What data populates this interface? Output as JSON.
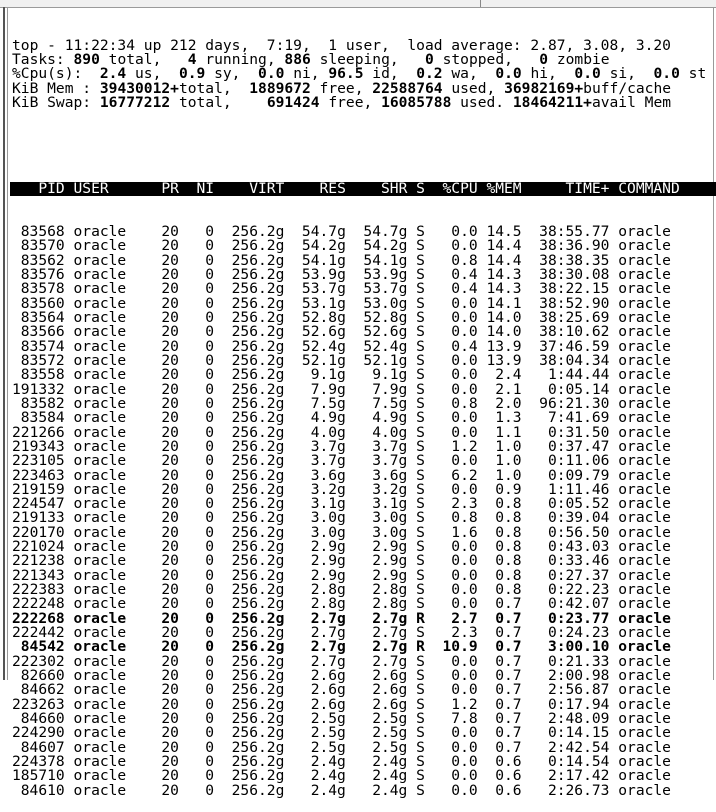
{
  "summary": [
    [
      {
        "t": "top - 11:22:34 up 212 days,  7:19,  1 user,  load average: 2.87, 3.08, 3.20",
        "b": false
      }
    ],
    [
      {
        "t": "Tasks: ",
        "b": false
      },
      {
        "t": "890",
        "b": true
      },
      {
        "t": " total,   ",
        "b": false
      },
      {
        "t": "4",
        "b": true
      },
      {
        "t": " running, ",
        "b": false
      },
      {
        "t": "886",
        "b": true
      },
      {
        "t": " sleeping,   ",
        "b": false
      },
      {
        "t": "0",
        "b": true
      },
      {
        "t": " stopped,   ",
        "b": false
      },
      {
        "t": "0",
        "b": true
      },
      {
        "t": " zombie",
        "b": false
      }
    ],
    [
      {
        "t": "%Cpu(s): ",
        "b": false
      },
      {
        "t": " 2.4",
        "b": true
      },
      {
        "t": " us, ",
        "b": false
      },
      {
        "t": " 0.9",
        "b": true
      },
      {
        "t": " sy, ",
        "b": false
      },
      {
        "t": " 0.0",
        "b": true
      },
      {
        "t": " ni, ",
        "b": false
      },
      {
        "t": "96.5",
        "b": true
      },
      {
        "t": " id, ",
        "b": false
      },
      {
        "t": " 0.2",
        "b": true
      },
      {
        "t": " wa, ",
        "b": false
      },
      {
        "t": " 0.0",
        "b": true
      },
      {
        "t": " hi, ",
        "b": false
      },
      {
        "t": " 0.0",
        "b": true
      },
      {
        "t": " si, ",
        "b": false
      },
      {
        "t": " 0.0",
        "b": true
      },
      {
        "t": " st",
        "b": false
      }
    ],
    [
      {
        "t": "KiB Mem : ",
        "b": false
      },
      {
        "t": "39430012+",
        "b": true
      },
      {
        "t": "total, ",
        "b": false
      },
      {
        "t": " 1889672",
        "b": true
      },
      {
        "t": " free, ",
        "b": false
      },
      {
        "t": "22588764",
        "b": true
      },
      {
        "t": " used, ",
        "b": false
      },
      {
        "t": "36982169+",
        "b": true
      },
      {
        "t": "buff/cache",
        "b": false
      }
    ],
    [
      {
        "t": "KiB Swap: ",
        "b": false
      },
      {
        "t": "16777212",
        "b": true
      },
      {
        "t": " total,  ",
        "b": false
      },
      {
        "t": "  691424",
        "b": true
      },
      {
        "t": " free, ",
        "b": false
      },
      {
        "t": "16085788",
        "b": true
      },
      {
        "t": " used. ",
        "b": false
      },
      {
        "t": "18464211+",
        "b": true
      },
      {
        "t": "avail Mem",
        "b": false
      }
    ]
  ],
  "columns": [
    "PID",
    "USER",
    "PR",
    "NI",
    "VIRT",
    "RES",
    "SHR",
    "S",
    "%CPU",
    "%MEM",
    "TIME+",
    "COMMAND"
  ],
  "processes": [
    [
      "83568",
      "oracle",
      "20",
      "0",
      "256.2g",
      "54.7g",
      "54.7g",
      "S",
      "0.0",
      "14.5",
      "38:55.77",
      "oracle"
    ],
    [
      "83570",
      "oracle",
      "20",
      "0",
      "256.2g",
      "54.2g",
      "54.2g",
      "S",
      "0.0",
      "14.4",
      "38:36.90",
      "oracle"
    ],
    [
      "83562",
      "oracle",
      "20",
      "0",
      "256.2g",
      "54.1g",
      "54.1g",
      "S",
      "0.8",
      "14.4",
      "38:38.35",
      "oracle"
    ],
    [
      "83576",
      "oracle",
      "20",
      "0",
      "256.2g",
      "53.9g",
      "53.9g",
      "S",
      "0.4",
      "14.3",
      "38:30.08",
      "oracle"
    ],
    [
      "83578",
      "oracle",
      "20",
      "0",
      "256.2g",
      "53.7g",
      "53.7g",
      "S",
      "0.4",
      "14.3",
      "38:22.15",
      "oracle"
    ],
    [
      "83560",
      "oracle",
      "20",
      "0",
      "256.2g",
      "53.1g",
      "53.0g",
      "S",
      "0.0",
      "14.1",
      "38:52.90",
      "oracle"
    ],
    [
      "83564",
      "oracle",
      "20",
      "0",
      "256.2g",
      "52.8g",
      "52.8g",
      "S",
      "0.0",
      "14.0",
      "38:25.69",
      "oracle"
    ],
    [
      "83566",
      "oracle",
      "20",
      "0",
      "256.2g",
      "52.6g",
      "52.6g",
      "S",
      "0.0",
      "14.0",
      "38:10.62",
      "oracle"
    ],
    [
      "83574",
      "oracle",
      "20",
      "0",
      "256.2g",
      "52.4g",
      "52.4g",
      "S",
      "0.4",
      "13.9",
      "37:46.59",
      "oracle"
    ],
    [
      "83572",
      "oracle",
      "20",
      "0",
      "256.2g",
      "52.1g",
      "52.1g",
      "S",
      "0.0",
      "13.9",
      "38:04.34",
      "oracle"
    ],
    [
      "83558",
      "oracle",
      "20",
      "0",
      "256.2g",
      "9.1g",
      "9.1g",
      "S",
      "0.0",
      "2.4",
      "1:44.44",
      "oracle"
    ],
    [
      "191332",
      "oracle",
      "20",
      "0",
      "256.2g",
      "7.9g",
      "7.9g",
      "S",
      "0.0",
      "2.1",
      "0:05.14",
      "oracle"
    ],
    [
      "83582",
      "oracle",
      "20",
      "0",
      "256.2g",
      "7.5g",
      "7.5g",
      "S",
      "0.8",
      "2.0",
      "96:21.30",
      "oracle"
    ],
    [
      "83584",
      "oracle",
      "20",
      "0",
      "256.2g",
      "4.9g",
      "4.9g",
      "S",
      "0.0",
      "1.3",
      "7:41.69",
      "oracle"
    ],
    [
      "221266",
      "oracle",
      "20",
      "0",
      "256.2g",
      "4.0g",
      "4.0g",
      "S",
      "0.0",
      "1.1",
      "0:31.50",
      "oracle"
    ],
    [
      "219343",
      "oracle",
      "20",
      "0",
      "256.2g",
      "3.7g",
      "3.7g",
      "S",
      "1.2",
      "1.0",
      "0:37.47",
      "oracle"
    ],
    [
      "223105",
      "oracle",
      "20",
      "0",
      "256.2g",
      "3.7g",
      "3.7g",
      "S",
      "0.0",
      "1.0",
      "0:11.06",
      "oracle"
    ],
    [
      "223463",
      "oracle",
      "20",
      "0",
      "256.2g",
      "3.6g",
      "3.6g",
      "S",
      "6.2",
      "1.0",
      "0:09.79",
      "oracle"
    ],
    [
      "219159",
      "oracle",
      "20",
      "0",
      "256.2g",
      "3.2g",
      "3.2g",
      "S",
      "0.0",
      "0.9",
      "1:11.46",
      "oracle"
    ],
    [
      "224547",
      "oracle",
      "20",
      "0",
      "256.2g",
      "3.1g",
      "3.1g",
      "S",
      "2.3",
      "0.8",
      "0:05.52",
      "oracle"
    ],
    [
      "219133",
      "oracle",
      "20",
      "0",
      "256.2g",
      "3.0g",
      "3.0g",
      "S",
      "0.8",
      "0.8",
      "0:39.04",
      "oracle"
    ],
    [
      "220170",
      "oracle",
      "20",
      "0",
      "256.2g",
      "3.0g",
      "3.0g",
      "S",
      "1.6",
      "0.8",
      "0:56.50",
      "oracle"
    ],
    [
      "221024",
      "oracle",
      "20",
      "0",
      "256.2g",
      "2.9g",
      "2.9g",
      "S",
      "0.0",
      "0.8",
      "0:43.03",
      "oracle"
    ],
    [
      "221238",
      "oracle",
      "20",
      "0",
      "256.2g",
      "2.9g",
      "2.9g",
      "S",
      "0.0",
      "0.8",
      "0:33.46",
      "oracle"
    ],
    [
      "221343",
      "oracle",
      "20",
      "0",
      "256.2g",
      "2.9g",
      "2.9g",
      "S",
      "0.0",
      "0.8",
      "0:27.37",
      "oracle"
    ],
    [
      "222383",
      "oracle",
      "20",
      "0",
      "256.2g",
      "2.8g",
      "2.8g",
      "S",
      "0.0",
      "0.8",
      "0:22.23",
      "oracle"
    ],
    [
      "222248",
      "oracle",
      "20",
      "0",
      "256.2g",
      "2.8g",
      "2.8g",
      "S",
      "0.0",
      "0.7",
      "0:42.07",
      "oracle"
    ],
    [
      "222268",
      "oracle",
      "20",
      "0",
      "256.2g",
      "2.7g",
      "2.7g",
      "R",
      "2.7",
      "0.7",
      "0:23.77",
      "oracle"
    ],
    [
      "222442",
      "oracle",
      "20",
      "0",
      "256.2g",
      "2.7g",
      "2.7g",
      "S",
      "2.3",
      "0.7",
      "0:24.23",
      "oracle"
    ],
    [
      "84542",
      "oracle",
      "20",
      "0",
      "256.2g",
      "2.7g",
      "2.7g",
      "R",
      "10.9",
      "0.7",
      "3:00.10",
      "oracle"
    ],
    [
      "222302",
      "oracle",
      "20",
      "0",
      "256.2g",
      "2.7g",
      "2.7g",
      "S",
      "0.0",
      "0.7",
      "0:21.33",
      "oracle"
    ],
    [
      "82660",
      "oracle",
      "20",
      "0",
      "256.2g",
      "2.6g",
      "2.6g",
      "S",
      "0.0",
      "0.7",
      "2:00.98",
      "oracle"
    ],
    [
      "84662",
      "oracle",
      "20",
      "0",
      "256.2g",
      "2.6g",
      "2.6g",
      "S",
      "0.0",
      "0.7",
      "2:56.87",
      "oracle"
    ],
    [
      "223263",
      "oracle",
      "20",
      "0",
      "256.2g",
      "2.6g",
      "2.6g",
      "S",
      "1.2",
      "0.7",
      "0:17.94",
      "oracle"
    ],
    [
      "84660",
      "oracle",
      "20",
      "0",
      "256.2g",
      "2.5g",
      "2.5g",
      "S",
      "7.8",
      "0.7",
      "2:48.09",
      "oracle"
    ],
    [
      "224290",
      "oracle",
      "20",
      "0",
      "256.2g",
      "2.5g",
      "2.5g",
      "S",
      "0.0",
      "0.7",
      "0:14.15",
      "oracle"
    ],
    [
      "84607",
      "oracle",
      "20",
      "0",
      "256.2g",
      "2.5g",
      "2.5g",
      "S",
      "0.0",
      "0.7",
      "2:42.54",
      "oracle"
    ],
    [
      "224378",
      "oracle",
      "20",
      "0",
      "256.2g",
      "2.4g",
      "2.4g",
      "S",
      "0.0",
      "0.6",
      "0:14.54",
      "oracle"
    ],
    [
      "185710",
      "oracle",
      "20",
      "0",
      "256.2g",
      "2.4g",
      "2.4g",
      "S",
      "0.0",
      "0.6",
      "2:17.42",
      "oracle"
    ],
    [
      "84610",
      "oracle",
      "20",
      "0",
      "256.2g",
      "2.4g",
      "2.4g",
      "S",
      "0.0",
      "0.6",
      "2:26.73",
      "oracle"
    ]
  ],
  "colors": {
    "header_bg": "#000000",
    "header_fg": "#ffffff",
    "text": "#000000"
  }
}
